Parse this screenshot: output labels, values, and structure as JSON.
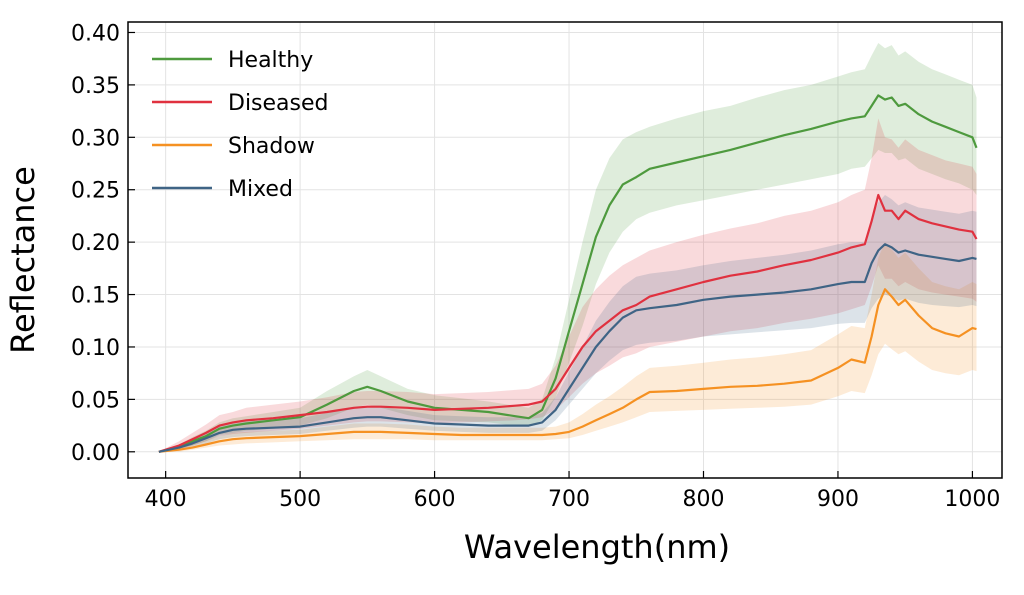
{
  "chart_data": {
    "type": "line",
    "title": "",
    "xlabel": "Wavelength(nm)",
    "ylabel": "Reflectance",
    "xlim": [
      372,
      1022
    ],
    "ylim": [
      -0.025,
      0.41
    ],
    "xticks": [
      400,
      500,
      600,
      700,
      800,
      900,
      1000
    ],
    "yticks": [
      0.0,
      0.05,
      0.1,
      0.15,
      0.2,
      0.25,
      0.3,
      0.35,
      0.4
    ],
    "ytick_labels": [
      "0.00",
      "0.05",
      "0.10",
      "0.15",
      "0.20",
      "0.25",
      "0.30",
      "0.35",
      "0.40"
    ],
    "grid": true,
    "legend_position": "top-left",
    "x": [
      395,
      410,
      420,
      430,
      440,
      450,
      460,
      480,
      500,
      520,
      540,
      550,
      560,
      580,
      600,
      620,
      640,
      660,
      670,
      680,
      690,
      700,
      710,
      720,
      730,
      740,
      750,
      760,
      780,
      800,
      820,
      840,
      860,
      880,
      900,
      910,
      920,
      925,
      930,
      935,
      940,
      945,
      950,
      960,
      970,
      980,
      990,
      1000,
      1003
    ],
    "series": [
      {
        "name": "Healthy",
        "color": "#4e9a3e",
        "values": [
          0.0,
          0.005,
          0.01,
          0.015,
          0.022,
          0.025,
          0.027,
          0.03,
          0.033,
          0.045,
          0.058,
          0.062,
          0.058,
          0.048,
          0.042,
          0.04,
          0.038,
          0.034,
          0.032,
          0.04,
          0.07,
          0.115,
          0.16,
          0.205,
          0.235,
          0.255,
          0.262,
          0.27,
          0.276,
          0.282,
          0.288,
          0.295,
          0.302,
          0.308,
          0.315,
          0.318,
          0.32,
          0.33,
          0.34,
          0.336,
          0.338,
          0.33,
          0.332,
          0.322,
          0.315,
          0.31,
          0.305,
          0.3,
          0.29
        ],
        "lower": [
          0.0,
          0.003,
          0.006,
          0.01,
          0.016,
          0.018,
          0.02,
          0.022,
          0.025,
          0.032,
          0.042,
          0.045,
          0.042,
          0.035,
          0.03,
          0.029,
          0.028,
          0.025,
          0.024,
          0.03,
          0.052,
          0.085,
          0.12,
          0.16,
          0.19,
          0.21,
          0.222,
          0.228,
          0.235,
          0.24,
          0.245,
          0.25,
          0.255,
          0.26,
          0.265,
          0.27,
          0.272,
          0.28,
          0.288,
          0.285,
          0.285,
          0.278,
          0.28,
          0.27,
          0.265,
          0.26,
          0.256,
          0.25,
          0.245
        ],
        "upper": [
          0.0,
          0.007,
          0.014,
          0.02,
          0.028,
          0.032,
          0.034,
          0.038,
          0.042,
          0.058,
          0.072,
          0.078,
          0.072,
          0.06,
          0.054,
          0.051,
          0.048,
          0.044,
          0.042,
          0.05,
          0.09,
          0.145,
          0.2,
          0.25,
          0.28,
          0.298,
          0.305,
          0.31,
          0.318,
          0.325,
          0.33,
          0.338,
          0.345,
          0.35,
          0.358,
          0.362,
          0.365,
          0.378,
          0.39,
          0.385,
          0.388,
          0.378,
          0.382,
          0.372,
          0.365,
          0.36,
          0.355,
          0.35,
          0.338
        ]
      },
      {
        "name": "Diseased",
        "color": "#e0313f",
        "values": [
          0.0,
          0.006,
          0.012,
          0.018,
          0.025,
          0.028,
          0.03,
          0.032,
          0.035,
          0.038,
          0.042,
          0.043,
          0.043,
          0.042,
          0.04,
          0.041,
          0.042,
          0.044,
          0.045,
          0.048,
          0.06,
          0.08,
          0.1,
          0.115,
          0.125,
          0.135,
          0.14,
          0.148,
          0.155,
          0.162,
          0.168,
          0.172,
          0.178,
          0.183,
          0.19,
          0.195,
          0.198,
          0.22,
          0.245,
          0.23,
          0.23,
          0.222,
          0.23,
          0.222,
          0.218,
          0.215,
          0.212,
          0.21,
          0.203
        ],
        "lower": [
          0.0,
          0.002,
          0.006,
          0.01,
          0.015,
          0.017,
          0.018,
          0.02,
          0.022,
          0.025,
          0.028,
          0.029,
          0.029,
          0.028,
          0.027,
          0.028,
          0.029,
          0.03,
          0.031,
          0.033,
          0.04,
          0.052,
          0.065,
          0.075,
          0.082,
          0.09,
          0.094,
          0.1,
          0.105,
          0.11,
          0.115,
          0.118,
          0.123,
          0.127,
          0.132,
          0.136,
          0.14,
          0.158,
          0.178,
          0.165,
          0.165,
          0.158,
          0.162,
          0.155,
          0.152,
          0.15,
          0.148,
          0.146,
          0.143
        ],
        "upper": [
          0.0,
          0.01,
          0.018,
          0.026,
          0.035,
          0.038,
          0.042,
          0.045,
          0.048,
          0.052,
          0.057,
          0.058,
          0.058,
          0.057,
          0.055,
          0.056,
          0.057,
          0.059,
          0.06,
          0.065,
          0.082,
          0.11,
          0.138,
          0.155,
          0.168,
          0.178,
          0.185,
          0.192,
          0.2,
          0.207,
          0.213,
          0.218,
          0.225,
          0.23,
          0.238,
          0.245,
          0.25,
          0.28,
          0.318,
          0.3,
          0.298,
          0.29,
          0.298,
          0.288,
          0.283,
          0.278,
          0.275,
          0.272,
          0.265
        ]
      },
      {
        "name": "Shadow",
        "color": "#f59122",
        "values": [
          0.0,
          0.002,
          0.004,
          0.007,
          0.01,
          0.012,
          0.013,
          0.014,
          0.015,
          0.017,
          0.019,
          0.019,
          0.019,
          0.018,
          0.017,
          0.016,
          0.016,
          0.016,
          0.016,
          0.016,
          0.017,
          0.019,
          0.024,
          0.03,
          0.036,
          0.042,
          0.05,
          0.057,
          0.058,
          0.06,
          0.062,
          0.063,
          0.065,
          0.068,
          0.08,
          0.088,
          0.085,
          0.11,
          0.14,
          0.155,
          0.148,
          0.14,
          0.145,
          0.13,
          0.118,
          0.113,
          0.11,
          0.118,
          0.117
        ],
        "lower": [
          0.0,
          0.0,
          0.002,
          0.004,
          0.006,
          0.007,
          0.008,
          0.009,
          0.01,
          0.011,
          0.012,
          0.012,
          0.012,
          0.012,
          0.011,
          0.011,
          0.011,
          0.011,
          0.011,
          0.011,
          0.012,
          0.013,
          0.016,
          0.02,
          0.024,
          0.028,
          0.033,
          0.038,
          0.039,
          0.04,
          0.041,
          0.042,
          0.043,
          0.045,
          0.053,
          0.058,
          0.056,
          0.073,
          0.093,
          0.103,
          0.098,
          0.093,
          0.096,
          0.086,
          0.078,
          0.075,
          0.073,
          0.078,
          0.077
        ],
        "upper": [
          0.0,
          0.004,
          0.007,
          0.011,
          0.015,
          0.018,
          0.019,
          0.02,
          0.021,
          0.024,
          0.027,
          0.027,
          0.027,
          0.026,
          0.024,
          0.023,
          0.023,
          0.023,
          0.023,
          0.023,
          0.024,
          0.028,
          0.036,
          0.045,
          0.053,
          0.062,
          0.072,
          0.08,
          0.082,
          0.085,
          0.088,
          0.09,
          0.093,
          0.097,
          0.112,
          0.12,
          0.118,
          0.15,
          0.185,
          0.2,
          0.193,
          0.185,
          0.19,
          0.175,
          0.162,
          0.158,
          0.155,
          0.162,
          0.16
        ]
      },
      {
        "name": "Mixed",
        "color": "#3f6485",
        "values": [
          0.0,
          0.004,
          0.008,
          0.013,
          0.018,
          0.021,
          0.022,
          0.023,
          0.024,
          0.028,
          0.032,
          0.033,
          0.033,
          0.03,
          0.027,
          0.026,
          0.025,
          0.025,
          0.025,
          0.028,
          0.04,
          0.06,
          0.08,
          0.1,
          0.115,
          0.128,
          0.135,
          0.137,
          0.14,
          0.145,
          0.148,
          0.15,
          0.152,
          0.155,
          0.16,
          0.162,
          0.162,
          0.18,
          0.192,
          0.198,
          0.195,
          0.19,
          0.192,
          0.188,
          0.186,
          0.184,
          0.182,
          0.185,
          0.184
        ],
        "lower": [
          0.0,
          0.002,
          0.005,
          0.008,
          0.012,
          0.014,
          0.015,
          0.016,
          0.017,
          0.02,
          0.023,
          0.024,
          0.024,
          0.022,
          0.02,
          0.019,
          0.018,
          0.018,
          0.018,
          0.02,
          0.03,
          0.045,
          0.06,
          0.075,
          0.087,
          0.097,
          0.102,
          0.104,
          0.106,
          0.11,
          0.112,
          0.114,
          0.116,
          0.118,
          0.122,
          0.123,
          0.123,
          0.137,
          0.146,
          0.15,
          0.148,
          0.144,
          0.146,
          0.142,
          0.14,
          0.139,
          0.138,
          0.14,
          0.139
        ],
        "upper": [
          0.0,
          0.006,
          0.012,
          0.018,
          0.024,
          0.028,
          0.03,
          0.031,
          0.032,
          0.037,
          0.042,
          0.043,
          0.043,
          0.039,
          0.035,
          0.034,
          0.033,
          0.033,
          0.033,
          0.037,
          0.052,
          0.076,
          0.1,
          0.125,
          0.143,
          0.158,
          0.167,
          0.17,
          0.173,
          0.178,
          0.182,
          0.185,
          0.188,
          0.192,
          0.198,
          0.2,
          0.2,
          0.222,
          0.238,
          0.245,
          0.241,
          0.235,
          0.238,
          0.233,
          0.231,
          0.229,
          0.227,
          0.23,
          0.229
        ]
      }
    ]
  }
}
